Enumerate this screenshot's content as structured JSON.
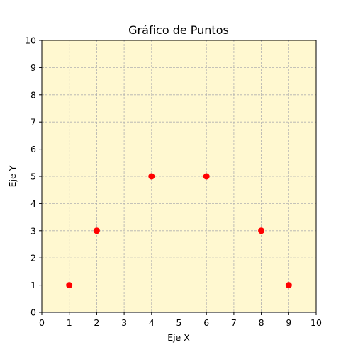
{
  "chart_data": {
    "type": "scatter",
    "title": "Gráfico de Puntos",
    "xlabel": "Eje X",
    "ylabel": "Eje Y",
    "xlim": [
      0,
      10
    ],
    "ylim": [
      0,
      10
    ],
    "xticks": [
      0,
      1,
      2,
      3,
      4,
      5,
      6,
      7,
      8,
      9,
      10
    ],
    "yticks": [
      0,
      1,
      2,
      3,
      4,
      5,
      6,
      7,
      8,
      9,
      10
    ],
    "grid": true,
    "background_color": "#fff8d0",
    "point_color": "#ff0000",
    "points": [
      {
        "x": 1,
        "y": 1
      },
      {
        "x": 2,
        "y": 3
      },
      {
        "x": 4,
        "y": 5
      },
      {
        "x": 6,
        "y": 5
      },
      {
        "x": 8,
        "y": 3
      },
      {
        "x": 9,
        "y": 1
      }
    ]
  }
}
